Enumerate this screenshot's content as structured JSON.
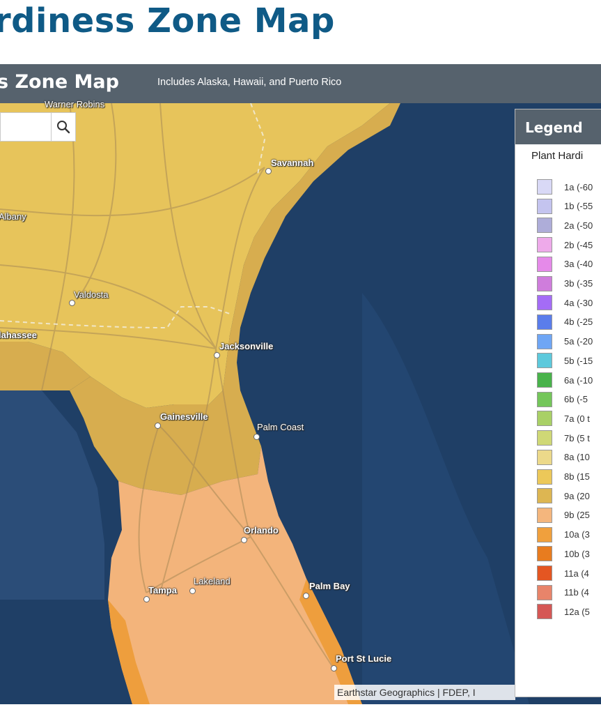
{
  "page_title": "rdiness Zone Map",
  "header": {
    "title": "s Zone Map",
    "subtitle": "Includes Alaska, Hawaii, and Puerto Rico"
  },
  "search": {
    "placeholder": ""
  },
  "cities": {
    "warner_robins": "Warner Robins",
    "savannah": "Savannah",
    "albany": "Albany",
    "valdosta": "Valdosta",
    "tallahassee": "lahassee",
    "jacksonville": "Jacksonville",
    "gainesville": "Gainesville",
    "palm_coast": "Palm Coast",
    "orlando": "Orlando",
    "lakeland": "Lakeland",
    "tampa": "Tampa",
    "palm_bay": "Palm Bay",
    "port_st_lucie": "Port St Lucie"
  },
  "attribution": "Earthstar Geographics | FDEP, I",
  "legend": {
    "title": "Legend",
    "subtitle": "Plant Hardi",
    "items": [
      {
        "label": "1a (-60",
        "color": "#d9d9f6"
      },
      {
        "label": "1b (-55",
        "color": "#c4c4ef"
      },
      {
        "label": "2a (-50",
        "color": "#aeadd9"
      },
      {
        "label": "2b (-45",
        "color": "#eeaaea"
      },
      {
        "label": "3a (-40",
        "color": "#e58ae9"
      },
      {
        "label": "3b (-35",
        "color": "#cf7ddc"
      },
      {
        "label": "4a (-30",
        "color": "#a46cf6"
      },
      {
        "label": "4b (-25",
        "color": "#5a7deb"
      },
      {
        "label": "5a (-20",
        "color": "#6fa6f5"
      },
      {
        "label": "5b (-15",
        "color": "#5dc9dc"
      },
      {
        "label": "6a (-10",
        "color": "#49b34b"
      },
      {
        "label": "6b (-5",
        "color": "#74c65a"
      },
      {
        "label": "7a (0 t",
        "color": "#a9d066"
      },
      {
        "label": "7b (5 t",
        "color": "#cfd876"
      },
      {
        "label": "8a (10",
        "color": "#ecd98a"
      },
      {
        "label": "8b (15",
        "color": "#ecc859"
      },
      {
        "label": "9a (20",
        "color": "#ddb652"
      },
      {
        "label": "9b (25",
        "color": "#f4b67d"
      },
      {
        "label": "10a (3",
        "color": "#f0a03d"
      },
      {
        "label": "10b (3",
        "color": "#e87c1f"
      },
      {
        "label": "11a (4",
        "color": "#e45622"
      },
      {
        "label": "11b (4",
        "color": "#e8846a"
      },
      {
        "label": "12a (5",
        "color": "#d55755"
      }
    ]
  }
}
